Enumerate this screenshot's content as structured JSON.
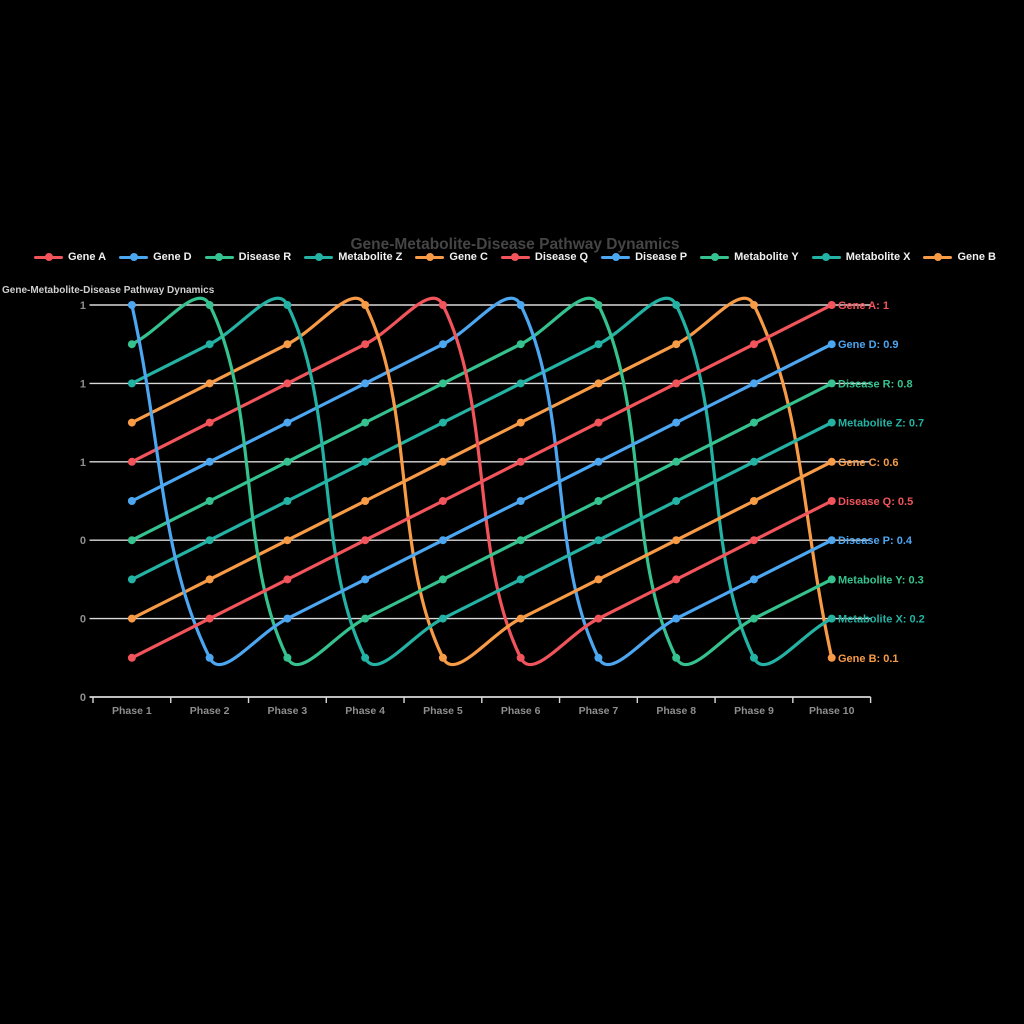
{
  "header": {
    "title": "Gene-Metabolite-Disease Pathway Dynamics",
    "corner_title": "Gene-Metabolite-Disease Pathway Dynamics"
  },
  "chart_data": {
    "type": "line",
    "title": "Gene-Metabolite-Disease Pathway Dynamics",
    "legend_position": "top",
    "grid": true,
    "line_tension": 0.4,
    "ylim": [
      0,
      1
    ],
    "x_categories": [
      "Phase 1",
      "Phase 2",
      "Phase 3",
      "Phase 4",
      "Phase 5",
      "Phase 6",
      "Phase 7",
      "Phase 8",
      "Phase 9",
      "Phase 10"
    ],
    "y_ticks": [
      {
        "value": 1.0,
        "label": "1"
      },
      {
        "value": 0.8,
        "label": "1"
      },
      {
        "value": 0.6,
        "label": "1"
      },
      {
        "value": 0.4,
        "label": "0"
      },
      {
        "value": 0.2,
        "label": "0"
      },
      {
        "value": 0.0,
        "label": "0"
      }
    ],
    "series": [
      {
        "name": "Gene A",
        "color": "#F2545B",
        "end_label": "Gene A: 1",
        "values": [
          0.1,
          0.2,
          0.3,
          0.4,
          0.5,
          0.6,
          0.7,
          0.8,
          0.9,
          1
        ]
      },
      {
        "name": "Gene D",
        "color": "#4DA6F0",
        "end_label": "Gene D: 0.9",
        "values": [
          1,
          0.1,
          0.2,
          0.3,
          0.4,
          0.5,
          0.6,
          0.7,
          0.8,
          0.9
        ]
      },
      {
        "name": "Disease R",
        "color": "#35C28F",
        "end_label": "Disease R: 0.8",
        "values": [
          0.9,
          1,
          0.1,
          0.2,
          0.3,
          0.4,
          0.5,
          0.6,
          0.7,
          0.8
        ]
      },
      {
        "name": "Metabolite Z",
        "color": "#23B2A3",
        "end_label": "Metabolite Z: 0.7",
        "values": [
          0.8,
          0.9,
          1,
          0.1,
          0.2,
          0.3,
          0.4,
          0.5,
          0.6,
          0.7
        ]
      },
      {
        "name": "Gene C",
        "color": "#F79B47",
        "end_label": "Gene C: 0.6",
        "values": [
          0.7,
          0.8,
          0.9,
          1,
          0.1,
          0.2,
          0.3,
          0.4,
          0.5,
          0.6
        ]
      },
      {
        "name": "Disease Q",
        "color": "#F2545B",
        "end_label": "Disease Q: 0.5",
        "values": [
          0.6,
          0.7,
          0.8,
          0.9,
          1,
          0.1,
          0.2,
          0.3,
          0.4,
          0.5
        ]
      },
      {
        "name": "Disease P",
        "color": "#4DA6F0",
        "end_label": "Disease P: 0.4",
        "values": [
          0.5,
          0.6,
          0.7,
          0.8,
          0.9,
          1,
          0.1,
          0.2,
          0.3,
          0.4
        ]
      },
      {
        "name": "Metabolite Y",
        "color": "#35C28F",
        "end_label": "Metabolite Y: 0.3",
        "values": [
          0.4,
          0.5,
          0.6,
          0.7,
          0.8,
          0.9,
          1,
          0.1,
          0.2,
          0.3
        ]
      },
      {
        "name": "Metabolite X",
        "color": "#23B2A3",
        "end_label": "Metabolite X: 0.2",
        "values": [
          0.3,
          0.4,
          0.5,
          0.6,
          0.7,
          0.8,
          0.9,
          1,
          0.1,
          0.2
        ]
      },
      {
        "name": "Gene B",
        "color": "#F79B47",
        "end_label": "Gene B: 0.1",
        "values": [
          0.2,
          0.3,
          0.4,
          0.5,
          0.6,
          0.7,
          0.8,
          0.9,
          1,
          0.1
        ]
      }
    ],
    "style_colors": {
      "background": "#000000",
      "grid": "#D9D9D9",
      "axis_text": "#8E8E8E",
      "title_text": "#454545",
      "legend_text": "#F0F0F0",
      "corner_title_text": "#CFCFCF"
    }
  }
}
